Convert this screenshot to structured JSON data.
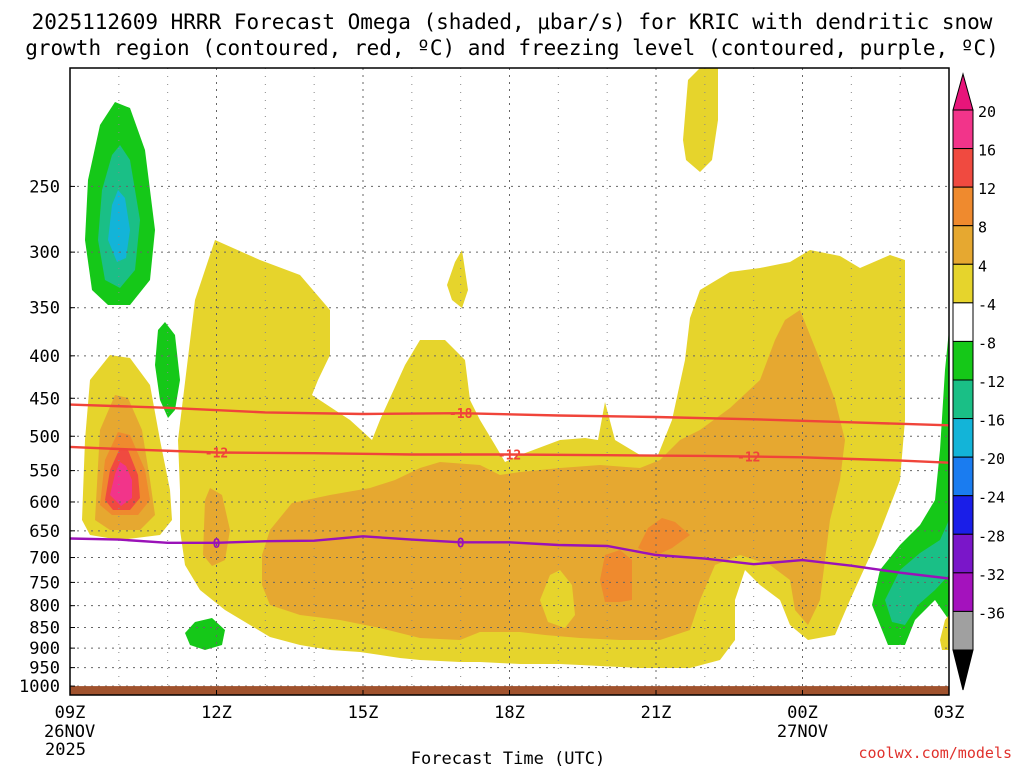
{
  "chart_data": {
    "type": "contour",
    "title_line1": "2025112609 HRRR Forecast Omega (shaded, μbar/s) for KRIC with dendritic snow",
    "title_line2": "growth region (contoured, red, ºC) and freezing level (contoured, purple, ºC)",
    "xlabel": "Forecast Time (UTC)",
    "credit": "coolwx.com/models",
    "x_range_hours": [
      0,
      18
    ],
    "x_ticks": [
      {
        "h": 0,
        "label": "09Z",
        "sub1": "26NOV",
        "sub2": "2025"
      },
      {
        "h": 3,
        "label": "12Z",
        "sub1": "",
        "sub2": ""
      },
      {
        "h": 6,
        "label": "15Z",
        "sub1": "",
        "sub2": ""
      },
      {
        "h": 9,
        "label": "18Z",
        "sub1": "",
        "sub2": ""
      },
      {
        "h": 12,
        "label": "21Z",
        "sub1": "",
        "sub2": ""
      },
      {
        "h": 15,
        "label": "00Z",
        "sub1": "27NOV",
        "sub2": ""
      },
      {
        "h": 18,
        "label": "03Z",
        "sub1": "",
        "sub2": ""
      }
    ],
    "y_range_hpa": [
      1025,
      180
    ],
    "y_ticks": [
      250,
      300,
      350,
      400,
      450,
      500,
      550,
      600,
      650,
      700,
      750,
      800,
      850,
      900,
      950,
      1000
    ],
    "colorbar": {
      "labels": [
        "20",
        "16",
        "12",
        "8",
        "4",
        "-4",
        "-8",
        "-12",
        "-16",
        "-20",
        "-24",
        "-28",
        "-32",
        "-36"
      ],
      "colors": [
        "#f2348a",
        "#f04a40",
        "#ef8a2e",
        "#e6a830",
        "#e6d42c",
        "#ffffff",
        "#15c818",
        "#1abf86",
        "#13b4d8",
        "#1a7cf0",
        "#1a1ee8",
        "#7a16c9",
        "#a412bd",
        "#a0a0a0"
      ],
      "top_color": "#e8157a",
      "bottom_color": "#000000"
    },
    "omega_fields": [
      {
        "name": "west-upper-column",
        "time_h": 0.9,
        "p_top": 235,
        "p_bottom": 370,
        "max_ascent_value": -14
      },
      {
        "name": "west-lower-column",
        "time_h": 1.0,
        "p_top": 450,
        "p_bottom": 670,
        "max_descent_value": 22
      },
      {
        "name": "main-band",
        "time_h": [
          2.2,
          14.6
        ],
        "p_top": 330,
        "p_bottom": 960,
        "max_descent_value": 14
      },
      {
        "name": "late-hours-core",
        "time_h": [
          14,
          17
        ],
        "p_top": 390,
        "p_bottom": 810,
        "max_descent_value": 10
      },
      {
        "name": "east-edge",
        "time_h": 17.7,
        "p_top": 430,
        "p_bottom": 920,
        "max_ascent_value": -12
      }
    ],
    "series": [
      {
        "name": "dendritic-minus-18C",
        "label": "-18",
        "color": "#f0443a",
        "time_h": [
          0,
          2,
          4,
          6,
          8,
          10,
          12,
          14,
          16,
          18
        ],
        "pressure_hpa": [
          458,
          462,
          468,
          470,
          469,
          472,
          474,
          477,
          481,
          485
        ]
      },
      {
        "name": "dendritic-minus-12C",
        "label": "-12",
        "color": "#f0443a",
        "time_h": [
          0,
          1,
          3,
          5,
          7,
          9,
          11,
          13,
          15,
          17,
          18
        ],
        "pressure_hpa": [
          515,
          518,
          523,
          524,
          526,
          526,
          527,
          528,
          530,
          535,
          538
        ]
      },
      {
        "name": "freezing-level-0C",
        "label": "0",
        "color": "#9a12b8",
        "time_h": [
          0,
          1,
          2,
          3,
          4,
          5,
          6,
          7,
          8,
          9,
          10,
          11,
          12,
          13,
          14,
          15,
          16,
          17,
          18
        ],
        "pressure_hpa": [
          664,
          666,
          672,
          672,
          669,
          668,
          660,
          666,
          671,
          671,
          676,
          678,
          695,
          702,
          713,
          705,
          716,
          730,
          742
        ]
      }
    ],
    "contour_labels": [
      {
        "series": "dendritic-minus-18C",
        "text": "-18",
        "time_h": 8
      },
      {
        "series": "dendritic-minus-12C",
        "text": "-12",
        "time_h": 3
      },
      {
        "series": "dendritic-minus-12C",
        "text": "-12",
        "time_h": 9
      },
      {
        "series": "dendritic-minus-12C",
        "text": "-12",
        "time_h": 13.9
      },
      {
        "series": "freezing-level-0C",
        "text": "0",
        "time_h": 3
      },
      {
        "series": "freezing-level-0C",
        "text": "0",
        "time_h": 8
      }
    ],
    "ground": {
      "p_from": 1025,
      "p_to": 1000,
      "color": "#a0522d"
    }
  }
}
